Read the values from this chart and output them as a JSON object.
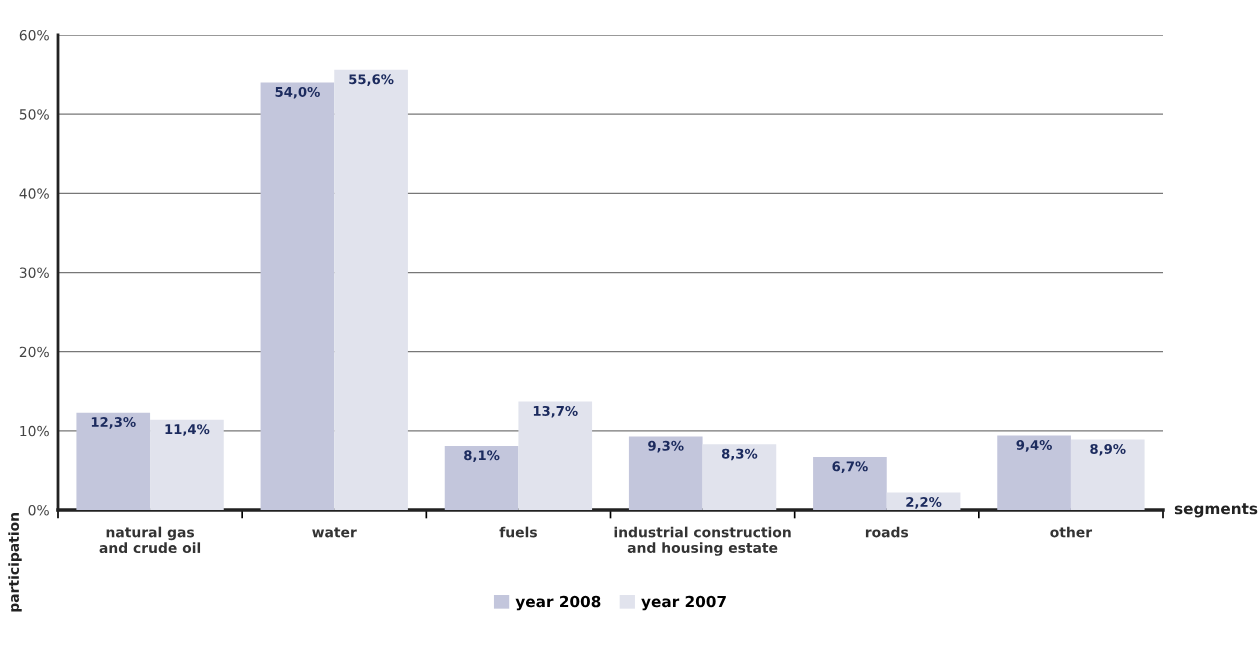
{
  "chart_data": {
    "type": "bar",
    "xlabel": "segments",
    "ylabel": "participation",
    "categories": [
      "natural gas\nand crude oil",
      "water",
      "fuels",
      "industrial construction\nand housing estate",
      "roads",
      "other"
    ],
    "series": [
      {
        "name": "year 2008",
        "color": "#c3c6dc",
        "values": [
          12.3,
          54.0,
          8.1,
          9.3,
          6.7,
          9.4
        ],
        "value_labels": [
          "12,3%",
          "54,0%",
          "8,1%",
          "9,3%",
          "6,7%",
          "9,4%"
        ]
      },
      {
        "name": "year 2007",
        "color": "#e1e3ed",
        "values": [
          11.4,
          55.6,
          13.7,
          8.3,
          2.2,
          8.9
        ],
        "value_labels": [
          "11,4%",
          "55,6%",
          "13,7%",
          "8,3%",
          "2,2%",
          "8,9%"
        ]
      }
    ],
    "ylim": [
      0,
      60
    ],
    "yticks": [
      {
        "value": 0,
        "label": "0%"
      },
      {
        "value": 10,
        "label": "10%"
      },
      {
        "value": 20,
        "label": "20%"
      },
      {
        "value": 30,
        "label": "30%"
      },
      {
        "value": 40,
        "label": "40%"
      },
      {
        "value": 50,
        "label": "50%"
      },
      {
        "value": 60,
        "label": "60%"
      }
    ],
    "grid": "y",
    "legend": "bottom"
  }
}
